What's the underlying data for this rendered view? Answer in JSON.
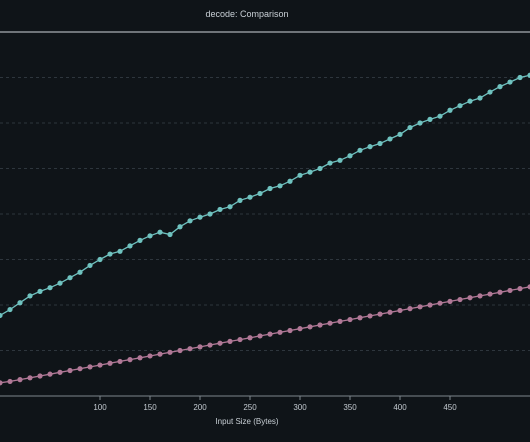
{
  "chart_data": {
    "type": "line",
    "title": "decode: Comparison",
    "xlabel": "Input Size (Bytes)",
    "ylabel": "",
    "xlim": [
      0,
      530
    ],
    "ylim": [
      0,
      8
    ],
    "x_ticks": [
      100,
      150,
      200,
      250,
      300,
      350,
      400,
      450
    ],
    "grid": "horizontal-dashed",
    "series": [
      {
        "color": "#6fc2bf",
        "x": [
          0,
          10,
          20,
          30,
          40,
          50,
          60,
          70,
          80,
          90,
          100,
          110,
          120,
          130,
          140,
          150,
          160,
          170,
          180,
          190,
          200,
          210,
          220,
          230,
          240,
          250,
          260,
          270,
          280,
          290,
          300,
          310,
          320,
          330,
          340,
          350,
          360,
          370,
          380,
          390,
          400,
          410,
          420,
          430,
          440,
          450,
          460,
          470,
          480,
          490,
          500,
          510,
          520,
          530
        ],
        "values": [
          1.77,
          1.9,
          2.05,
          2.2,
          2.3,
          2.38,
          2.48,
          2.6,
          2.72,
          2.87,
          3.0,
          3.12,
          3.18,
          3.3,
          3.42,
          3.52,
          3.6,
          3.55,
          3.72,
          3.85,
          3.93,
          4.0,
          4.1,
          4.16,
          4.3,
          4.37,
          4.45,
          4.56,
          4.62,
          4.72,
          4.85,
          4.92,
          5.0,
          5.12,
          5.18,
          5.28,
          5.4,
          5.48,
          5.55,
          5.65,
          5.75,
          5.9,
          6.0,
          6.08,
          6.15,
          6.28,
          6.38,
          6.48,
          6.55,
          6.68,
          6.8,
          6.9,
          7.0,
          7.05
        ]
      },
      {
        "color": "#b07896",
        "x": [
          0,
          10,
          20,
          30,
          40,
          50,
          60,
          70,
          80,
          90,
          100,
          110,
          120,
          130,
          140,
          150,
          160,
          170,
          180,
          190,
          200,
          210,
          220,
          230,
          240,
          250,
          260,
          270,
          280,
          290,
          300,
          310,
          320,
          330,
          340,
          350,
          360,
          370,
          380,
          390,
          400,
          410,
          420,
          430,
          440,
          450,
          460,
          470,
          480,
          490,
          500,
          510,
          520,
          530
        ],
        "values": [
          0.29,
          0.32,
          0.36,
          0.4,
          0.44,
          0.48,
          0.52,
          0.56,
          0.6,
          0.64,
          0.68,
          0.72,
          0.76,
          0.8,
          0.84,
          0.88,
          0.92,
          0.96,
          1.0,
          1.04,
          1.08,
          1.12,
          1.16,
          1.2,
          1.24,
          1.28,
          1.32,
          1.36,
          1.4,
          1.44,
          1.48,
          1.52,
          1.56,
          1.6,
          1.64,
          1.68,
          1.72,
          1.76,
          1.8,
          1.84,
          1.88,
          1.92,
          1.96,
          2.0,
          2.04,
          2.08,
          2.12,
          2.16,
          2.2,
          2.24,
          2.28,
          2.32,
          2.36,
          2.4
        ]
      }
    ]
  }
}
